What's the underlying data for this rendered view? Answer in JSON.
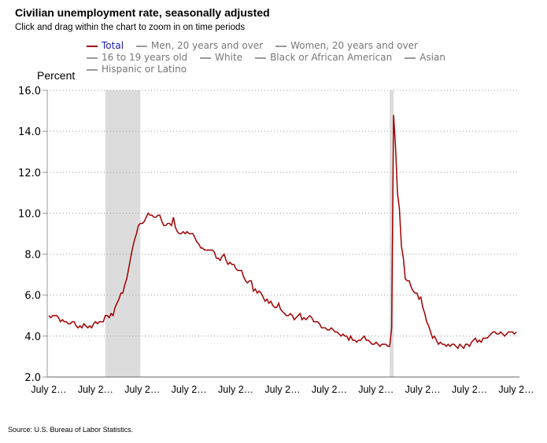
{
  "chart_data": {
    "type": "line",
    "title": "Civilian unemployment rate, seasonally adjusted",
    "subtitle": "Click and drag within the chart to zoom in on time periods",
    "ylabel": "Percent",
    "ylim": [
      2,
      16
    ],
    "yticks": [
      "16.0",
      "14.0",
      "12.0",
      "10.0",
      "8.0",
      "6.0",
      "4.0",
      "2.0"
    ],
    "xticks": [
      "July 2…",
      "July 2…",
      "July 2…",
      "July 2…",
      "July 2…",
      "July 2…",
      "July 2…",
      "July 2…",
      "July 2…",
      "July 2…",
      "July 2…"
    ],
    "x_start": "2005-07",
    "x_end": "2025-07",
    "frequency": "monthly",
    "grid": "horizontal dotted",
    "legend_position": "top",
    "legend": [
      {
        "name": "Total",
        "color": "#a00000",
        "active": true
      },
      {
        "name": "Men, 20 years and over",
        "color": "#888888",
        "active": false
      },
      {
        "name": "Women, 20 years and over",
        "color": "#888888",
        "active": false
      },
      {
        "name": "16 to 19 years old",
        "color": "#888888",
        "active": false
      },
      {
        "name": "White",
        "color": "#888888",
        "active": false
      },
      {
        "name": "Black or African American",
        "color": "#888888",
        "active": false
      },
      {
        "name": "Asian",
        "color": "#888888",
        "active": false
      },
      {
        "name": "Hispanic or Latino",
        "color": "#888888",
        "active": false
      }
    ],
    "recessions": [
      [
        "2007-12",
        "2009-06"
      ],
      [
        "2020-02",
        "2020-04"
      ]
    ],
    "series": [
      {
        "name": "Total",
        "color": "#a00000",
        "values": [
          5.0,
          4.9,
          5.0,
          5.0,
          5.0,
          4.9,
          4.7,
          4.8,
          4.7,
          4.7,
          4.6,
          4.6,
          4.7,
          4.7,
          4.5,
          4.4,
          4.5,
          4.4,
          4.6,
          4.5,
          4.4,
          4.5,
          4.4,
          4.6,
          4.7,
          4.6,
          4.7,
          4.7,
          4.7,
          5.0,
          5.0,
          4.9,
          5.1,
          5.0,
          5.4,
          5.6,
          5.8,
          6.1,
          6.1,
          6.5,
          6.8,
          7.3,
          7.8,
          8.3,
          8.7,
          9.0,
          9.4,
          9.5,
          9.5,
          9.6,
          9.8,
          10.0,
          9.9,
          9.9,
          9.8,
          9.8,
          9.9,
          9.9,
          9.6,
          9.4,
          9.4,
          9.5,
          9.5,
          9.4,
          9.8,
          9.3,
          9.1,
          9.0,
          9.0,
          9.1,
          9.0,
          9.1,
          9.0,
          9.0,
          9.0,
          8.8,
          8.6,
          8.5,
          8.3,
          8.3,
          8.2,
          8.2,
          8.2,
          8.2,
          8.2,
          8.1,
          7.8,
          7.8,
          7.7,
          7.9,
          8.0,
          7.7,
          7.5,
          7.6,
          7.5,
          7.5,
          7.3,
          7.2,
          7.2,
          7.2,
          6.9,
          6.7,
          6.6,
          6.7,
          6.7,
          6.2,
          6.3,
          6.1,
          6.2,
          6.1,
          5.9,
          5.7,
          5.8,
          5.6,
          5.7,
          5.5,
          5.4,
          5.4,
          5.6,
          5.3,
          5.2,
          5.1,
          5.0,
          5.0,
          5.1,
          5.0,
          4.8,
          4.9,
          5.0,
          5.1,
          4.8,
          4.9,
          4.8,
          4.9,
          5.0,
          4.9,
          4.7,
          4.7,
          4.7,
          4.6,
          4.4,
          4.4,
          4.4,
          4.3,
          4.3,
          4.4,
          4.3,
          4.2,
          4.2,
          4.1,
          4.0,
          4.1,
          4.0,
          4.0,
          3.8,
          4.0,
          3.8,
          3.8,
          3.7,
          3.8,
          3.8,
          3.9,
          4.0,
          3.8,
          3.8,
          3.7,
          3.6,
          3.6,
          3.7,
          3.6,
          3.5,
          3.6,
          3.6,
          3.6,
          3.5,
          3.5,
          4.4,
          14.8,
          13.2,
          11.0,
          10.2,
          8.4,
          7.8,
          6.8,
          6.7,
          6.7,
          6.4,
          6.2,
          6.1,
          6.1,
          5.8,
          5.9,
          5.4,
          5.1,
          4.7,
          4.5,
          4.2,
          3.9,
          4.0,
          3.8,
          3.6,
          3.7,
          3.6,
          3.6,
          3.5,
          3.6,
          3.5,
          3.6,
          3.6,
          3.5,
          3.4,
          3.6,
          3.5,
          3.4,
          3.6,
          3.6,
          3.5,
          3.7,
          3.8,
          3.9,
          3.7,
          3.8,
          3.7,
          3.9,
          3.9,
          3.9,
          4.0,
          4.1,
          4.2,
          4.2,
          4.1,
          4.1,
          4.2,
          4.1,
          4.0,
          4.1,
          4.2,
          4.2,
          4.2,
          4.1,
          4.2
        ]
      }
    ]
  },
  "source": "Source: U.S. Bureau of Labor Statistics."
}
